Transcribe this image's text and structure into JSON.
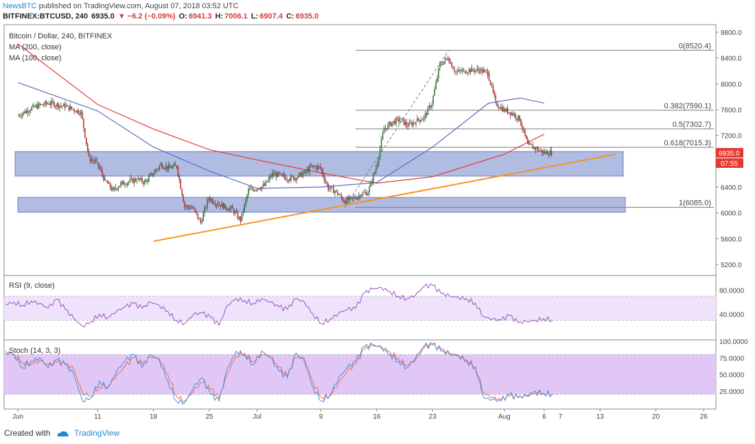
{
  "header": {
    "brand": "NewsBTC",
    "published_text": "published on TradingView.com, August 07, 2018 03:52 UTC",
    "symbol": "BITFINEX:BTCUSD, 240",
    "last": "6935.0",
    "change": "▼ −6.2 (−0.09%)",
    "o_label": "O:",
    "o": "6941.3",
    "h_label": "H:",
    "h": "7006.1",
    "l_label": "L:",
    "l": "6907.4",
    "c_label": "C:",
    "c": "6935.0"
  },
  "price_pane": {
    "title": "Bitcoin / Dollar, 240, BITFINEX",
    "ma200_label": "MA (200, close)",
    "ma100_label": "MA (100, close)",
    "price_tag": "6935.0",
    "countdown_tag": "07:55"
  },
  "rsi_pane": {
    "label": "RSI (9, close)"
  },
  "stoch_pane": {
    "label": "Stoch (14, 3, 3)"
  },
  "footer": {
    "created_with": "Created with",
    "brand": "TradingView"
  },
  "colors": {
    "up": "#2e7d32",
    "down": "#c62828",
    "wick": "#333333",
    "ma200": "#e53935",
    "ma100": "#5c6bc0",
    "zone": "#6f85c8",
    "trendline": "#f7931e",
    "rsi": "#9c4fc4",
    "rsi_band": "#efe3fb",
    "stoch_k": "#3f8fe0",
    "stoch_d": "#ef6c4f",
    "stoch_band": "#e1c7f6",
    "price_tag": "#e53935"
  },
  "chart_data": {
    "type": "candlestick",
    "x_ticks": [
      "Jun",
      "11",
      "18",
      "25",
      "Jul",
      "9",
      "16",
      "23",
      "Aug",
      "6",
      "13",
      "20",
      "26"
    ],
    "x_ticks_extra": [
      "7"
    ],
    "y_ticks": [
      8800.0,
      8400.0,
      8000.0,
      7600.0,
      7200.0,
      6800.0,
      6400.0,
      6000.0,
      5600.0,
      5200.0
    ],
    "y_tick_labels": [
      "8800.0",
      "8400.0",
      "8000.0",
      "7600.0",
      "7200.0",
      "6800.0",
      "6400.0",
      "6000.0",
      "5600.0",
      "5200.0"
    ],
    "fibonacci": [
      {
        "label": "0(8520.4)",
        "value": 8520.4
      },
      {
        "label": "0.382(7590.1)",
        "value": 7590.1
      },
      {
        "label": "0.5(7302.7)",
        "value": 7302.7
      },
      {
        "label": "0.618(7015.3)",
        "value": 7015.3
      },
      {
        "label": "1(6085.0)",
        "value": 6085.0
      }
    ],
    "zones": [
      {
        "top": 6950,
        "bottom": 6570
      },
      {
        "top": 6240,
        "bottom": 6010
      }
    ],
    "trendline": {
      "from": [
        "Jun 18",
        5560
      ],
      "to": [
        "Aug 15",
        6910
      ]
    },
    "price_path": [
      [
        "Jun 1",
        7500
      ],
      [
        "Jun 3",
        7640
      ],
      [
        "Jun 5",
        7700
      ],
      [
        "Jun 7",
        7650
      ],
      [
        "Jun 9",
        7560
      ],
      [
        "Jun 10",
        6850
      ],
      [
        "Jun 11",
        6780
      ],
      [
        "Jun 12",
        6500
      ],
      [
        "Jun 13",
        6350
      ],
      [
        "Jun 14",
        6450
      ],
      [
        "Jun 16",
        6520
      ],
      [
        "Jun 17",
        6480
      ],
      [
        "Jun 18",
        6600
      ],
      [
        "Jun 19",
        6750
      ],
      [
        "Jun 20",
        6700
      ],
      [
        "Jun 21",
        6720
      ],
      [
        "Jun 22",
        6100
      ],
      [
        "Jun 23",
        6080
      ],
      [
        "Jun 24",
        5850
      ],
      [
        "Jun 25",
        6230
      ],
      [
        "Jun 26",
        6150
      ],
      [
        "Jun 27",
        6100
      ],
      [
        "Jun 28",
        6050
      ],
      [
        "Jun 29",
        5880
      ],
      [
        "Jun 30",
        6350
      ],
      [
        "Jul 1",
        6380
      ],
      [
        "Jul 2",
        6420
      ],
      [
        "Jul 3",
        6600
      ],
      [
        "Jul 4",
        6580
      ],
      [
        "Jul 5",
        6530
      ],
      [
        "Jul 6",
        6550
      ],
      [
        "Jul 7",
        6620
      ],
      [
        "Jul 8",
        6720
      ],
      [
        "Jul 9",
        6700
      ],
      [
        "Jul 10",
        6380
      ],
      [
        "Jul 11",
        6330
      ],
      [
        "Jul 12",
        6180
      ],
      [
        "Jul 13",
        6220
      ],
      [
        "Jul 14",
        6280
      ],
      [
        "Jul 15",
        6320
      ],
      [
        "Jul 16",
        6700
      ],
      [
        "Jul 17",
        7300
      ],
      [
        "Jul 18",
        7400
      ],
      [
        "Jul 19",
        7450
      ],
      [
        "Jul 20",
        7350
      ],
      [
        "Jul 21",
        7420
      ],
      [
        "Jul 22",
        7480
      ],
      [
        "Jul 23",
        7700
      ],
      [
        "Jul 24",
        8300
      ],
      [
        "Jul 25",
        8400
      ],
      [
        "Jul 26",
        8180
      ],
      [
        "Jul 27",
        8200
      ],
      [
        "Jul 28",
        8220
      ],
      [
        "Jul 29",
        8210
      ],
      [
        "Jul 30",
        8170
      ],
      [
        "Jul 31",
        7700
      ],
      [
        "Aug 1",
        7600
      ],
      [
        "Aug 2",
        7550
      ],
      [
        "Aug 3",
        7450
      ],
      [
        "Aug 4",
        7050
      ],
      [
        "Aug 5",
        7000
      ],
      [
        "Aug 6",
        6940
      ],
      [
        "Aug 7",
        6935
      ]
    ],
    "ma200": [
      [
        "Jun 1",
        8620
      ],
      [
        "Jun 11",
        7680
      ],
      [
        "Jun 18",
        7300
      ],
      [
        "Jun 25",
        6980
      ],
      [
        "Jul 1",
        6820
      ],
      [
        "Jul 9",
        6620
      ],
      [
        "Jul 16",
        6460
      ],
      [
        "Jul 23",
        6560
      ],
      [
        "Aug 1",
        6910
      ],
      [
        "Aug 6",
        7220
      ]
    ],
    "ma100": [
      [
        "Jun 1",
        8020
      ],
      [
        "Jun 11",
        7580
      ],
      [
        "Jun 18",
        7020
      ],
      [
        "Jun 25",
        6650
      ],
      [
        "Jul 1",
        6380
      ],
      [
        "Jul 9",
        6400
      ],
      [
        "Jul 16",
        6470
      ],
      [
        "Jul 23",
        7020
      ],
      [
        "Jul 30",
        7700
      ],
      [
        "Aug 3",
        7780
      ],
      [
        "Aug 6",
        7700
      ]
    ],
    "rsi": {
      "levels": [
        "80.0000",
        "40.0000"
      ],
      "range": [
        0,
        100
      ],
      "band": [
        30,
        70
      ],
      "values": [
        57,
        60,
        55,
        62,
        58,
        50,
        65,
        48,
        33,
        20,
        28,
        40,
        35,
        45,
        52,
        58,
        50,
        60,
        55,
        45,
        30,
        25,
        40,
        42,
        35,
        22,
        55,
        66,
        63,
        58,
        66,
        60,
        52,
        48,
        66,
        60,
        40,
        25,
        32,
        42,
        48,
        50,
        75,
        82,
        84,
        78,
        70,
        66,
        72,
        86,
        88,
        74,
        70,
        68,
        66,
        58,
        36,
        32,
        30,
        38,
        26,
        28,
        30,
        33,
        31
      ]
    },
    "stoch": {
      "levels": [
        "100.0000",
        "75.0000",
        "50.0000",
        "25.0000"
      ],
      "range": [
        0,
        100
      ],
      "band": [
        20,
        80
      ],
      "k": [
        85,
        80,
        60,
        70,
        75,
        60,
        72,
        65,
        50,
        10,
        15,
        40,
        30,
        55,
        70,
        80,
        60,
        80,
        72,
        40,
        10,
        8,
        30,
        45,
        20,
        10,
        60,
        85,
        80,
        65,
        85,
        75,
        55,
        45,
        82,
        70,
        30,
        10,
        20,
        45,
        60,
        70,
        92,
        95,
        90,
        80,
        70,
        60,
        75,
        93,
        96,
        85,
        80,
        78,
        70,
        60,
        15,
        12,
        10,
        20,
        15,
        18,
        25,
        22,
        20
      ],
      "d": [
        82,
        81,
        68,
        66,
        71,
        64,
        68,
        66,
        58,
        22,
        18,
        32,
        32,
        48,
        62,
        75,
        66,
        76,
        74,
        50,
        18,
        10,
        25,
        38,
        28,
        14,
        52,
        78,
        82,
        70,
        80,
        78,
        60,
        48,
        76,
        74,
        38,
        16,
        18,
        38,
        54,
        66,
        88,
        93,
        92,
        84,
        74,
        64,
        72,
        90,
        94,
        88,
        82,
        79,
        72,
        62,
        22,
        15,
        12,
        17,
        16,
        17,
        22,
        22,
        21
      ]
    }
  }
}
